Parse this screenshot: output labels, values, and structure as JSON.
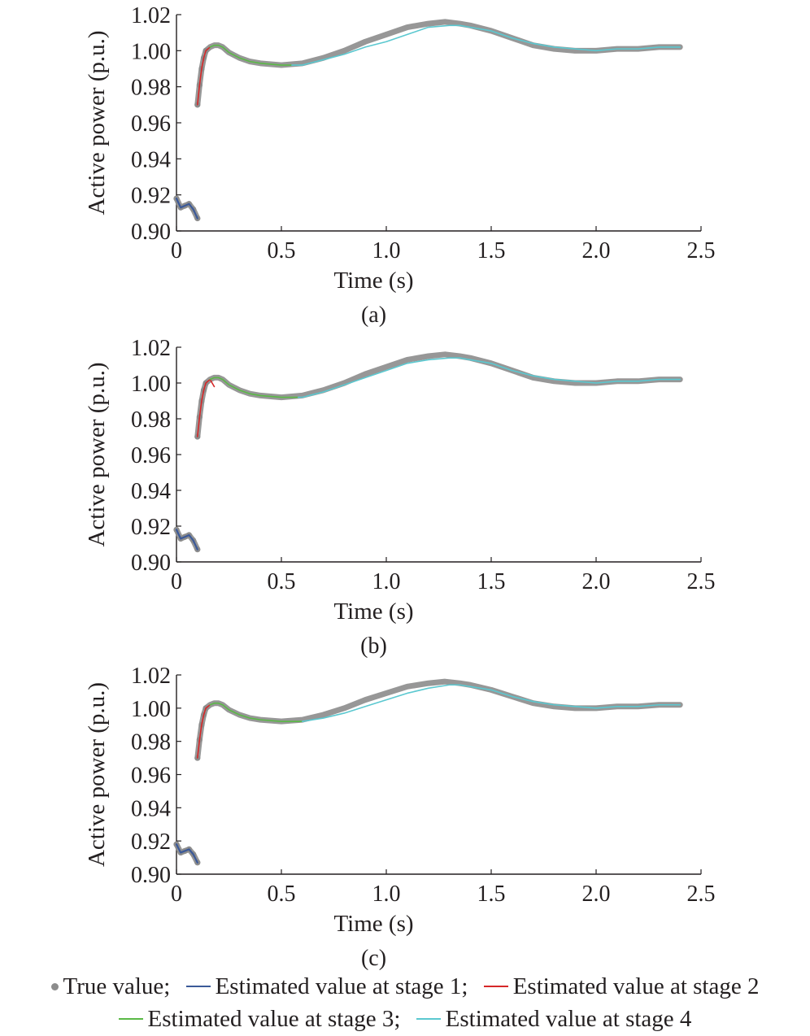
{
  "chart_data": [
    {
      "type": "line",
      "panel_label": "(a)",
      "xlabel": "Time (s)",
      "ylabel": "Active power (p.u.)",
      "xlim": [
        0,
        2.5
      ],
      "ylim": [
        0.9,
        1.02
      ],
      "xticks": [
        0,
        0.5,
        1.0,
        1.5,
        2.0,
        2.5
      ],
      "xtick_labels": [
        "0",
        "0.5",
        "1.0",
        "1.5",
        "2.0",
        "2.5"
      ],
      "yticks": [
        0.9,
        0.92,
        0.94,
        0.96,
        0.98,
        1.0,
        1.02
      ],
      "ytick_labels": [
        "0.90",
        "0.92",
        "0.94",
        "0.96",
        "0.98",
        "1.00",
        "1.02"
      ],
      "grid": false,
      "series": [
        {
          "name": "True value",
          "style": "dots",
          "color": "#8c8c8c",
          "x": [
            0,
            0.02,
            0.04,
            0.06,
            0.08,
            0.1,
            0.1,
            0.11,
            0.12,
            0.13,
            0.14,
            0.16,
            0.18,
            0.2,
            0.22,
            0.25,
            0.3,
            0.35,
            0.4,
            0.5,
            0.6,
            0.7,
            0.8,
            0.9,
            1.0,
            1.1,
            1.2,
            1.28,
            1.35,
            1.4,
            1.5,
            1.6,
            1.7,
            1.8,
            1.9,
            2.0,
            2.1,
            2.2,
            2.3,
            2.4
          ],
          "y": [
            0.918,
            0.913,
            0.914,
            0.915,
            0.912,
            0.907,
            0.97,
            0.981,
            0.99,
            0.996,
            1.0,
            1.002,
            1.003,
            1.003,
            1.002,
            0.999,
            0.996,
            0.994,
            0.993,
            0.992,
            0.993,
            0.996,
            1.0,
            1.005,
            1.009,
            1.013,
            1.015,
            1.016,
            1.015,
            1.014,
            1.011,
            1.007,
            1.003,
            1.001,
            1.0,
            1.0,
            1.001,
            1.001,
            1.002,
            1.002
          ]
        },
        {
          "name": "Estimated value at stage 1",
          "color": "#3b5998",
          "x": [
            0,
            0.02,
            0.04,
            0.06,
            0.08,
            0.1
          ],
          "y": [
            0.918,
            0.913,
            0.914,
            0.915,
            0.912,
            0.907
          ]
        },
        {
          "name": "Estimated value at stage 2",
          "color": "#d62728",
          "x": [
            0.1,
            0.11,
            0.12,
            0.13,
            0.14,
            0.16
          ],
          "y": [
            0.97,
            0.981,
            0.99,
            0.996,
            1.0,
            1.002
          ]
        },
        {
          "name": "Estimated value at stage 3",
          "color": "#5ab946",
          "x": [
            0.16,
            0.18,
            0.2,
            0.22,
            0.25,
            0.3,
            0.35,
            0.4,
            0.5,
            0.55
          ],
          "y": [
            1.002,
            1.003,
            1.003,
            1.002,
            0.999,
            0.996,
            0.994,
            0.993,
            0.992,
            0.992
          ]
        },
        {
          "name": "Estimated value at stage 4",
          "color": "#5bc8d0",
          "x": [
            0.55,
            0.6,
            0.7,
            0.8,
            0.9,
            1.0,
            1.1,
            1.2,
            1.3,
            1.35,
            1.4,
            1.5,
            1.6,
            1.7,
            1.8,
            1.9,
            2.0,
            2.1,
            2.2,
            2.3,
            2.4
          ],
          "y": [
            0.992,
            0.992,
            0.995,
            0.998,
            1.002,
            1.005,
            1.009,
            1.013,
            1.014,
            1.014,
            1.013,
            1.011,
            1.007,
            1.004,
            1.002,
            1.001,
            1.0,
            1.001,
            1.001,
            1.002,
            1.002
          ]
        }
      ]
    },
    {
      "type": "line",
      "panel_label": "(b)",
      "xlabel": "Time (s)",
      "ylabel": "Active power (p.u.)",
      "xlim": [
        0,
        2.5
      ],
      "ylim": [
        0.9,
        1.02
      ],
      "xticks": [
        0,
        0.5,
        1.0,
        1.5,
        2.0,
        2.5
      ],
      "xtick_labels": [
        "0",
        "0.5",
        "1.0",
        "1.5",
        "2.0",
        "2.5"
      ],
      "yticks": [
        0.9,
        0.92,
        0.94,
        0.96,
        0.98,
        1.0,
        1.02
      ],
      "ytick_labels": [
        "0.90",
        "0.92",
        "0.94",
        "0.96",
        "0.98",
        "1.00",
        "1.02"
      ],
      "grid": false,
      "series": [
        {
          "name": "True value",
          "style": "dots",
          "color": "#8c8c8c",
          "x": [
            0,
            0.02,
            0.04,
            0.06,
            0.08,
            0.1,
            0.1,
            0.11,
            0.12,
            0.13,
            0.14,
            0.16,
            0.18,
            0.2,
            0.22,
            0.25,
            0.3,
            0.35,
            0.4,
            0.5,
            0.6,
            0.7,
            0.8,
            0.9,
            1.0,
            1.1,
            1.2,
            1.28,
            1.35,
            1.4,
            1.5,
            1.6,
            1.7,
            1.8,
            1.9,
            2.0,
            2.1,
            2.2,
            2.3,
            2.4
          ],
          "y": [
            0.918,
            0.913,
            0.914,
            0.915,
            0.912,
            0.907,
            0.97,
            0.981,
            0.99,
            0.996,
            1.0,
            1.002,
            1.003,
            1.003,
            1.002,
            0.999,
            0.996,
            0.994,
            0.993,
            0.992,
            0.993,
            0.996,
            1.0,
            1.005,
            1.009,
            1.013,
            1.015,
            1.016,
            1.015,
            1.014,
            1.011,
            1.007,
            1.003,
            1.001,
            1.0,
            1.0,
            1.001,
            1.001,
            1.002,
            1.002
          ]
        },
        {
          "name": "Estimated value at stage 1",
          "color": "#3b5998",
          "x": [
            0,
            0.02,
            0.04,
            0.06,
            0.08,
            0.1
          ],
          "y": [
            0.918,
            0.913,
            0.914,
            0.915,
            0.912,
            0.907
          ]
        },
        {
          "name": "Estimated value at stage 2",
          "color": "#d62728",
          "x": [
            0.1,
            0.11,
            0.12,
            0.13,
            0.14,
            0.16,
            0.18
          ],
          "y": [
            0.97,
            0.981,
            0.99,
            0.996,
            1.0,
            1.002,
            0.998
          ]
        },
        {
          "name": "Estimated value at stage 3",
          "color": "#5ab946",
          "x": [
            0.16,
            0.18,
            0.2,
            0.22,
            0.25,
            0.3,
            0.35,
            0.4,
            0.5,
            0.58
          ],
          "y": [
            1.002,
            1.003,
            1.003,
            1.002,
            0.999,
            0.996,
            0.994,
            0.993,
            0.992,
            0.992
          ]
        },
        {
          "name": "Estimated value at stage 4",
          "color": "#5bc8d0",
          "x": [
            0.58,
            0.6,
            0.7,
            0.8,
            0.9,
            1.0,
            1.1,
            1.2,
            1.3,
            1.35,
            1.4,
            1.5,
            1.6,
            1.7,
            1.8,
            1.9,
            2.0,
            2.1,
            2.2,
            2.3,
            2.4
          ],
          "y": [
            0.992,
            0.992,
            0.995,
            0.999,
            1.003,
            1.007,
            1.011,
            1.013,
            1.014,
            1.014,
            1.013,
            1.011,
            1.007,
            1.004,
            1.002,
            1.001,
            1.0,
            1.001,
            1.001,
            1.002,
            1.002
          ]
        }
      ]
    },
    {
      "type": "line",
      "panel_label": "(c)",
      "xlabel": "Time (s)",
      "ylabel": "Active power (p.u.)",
      "xlim": [
        0,
        2.5
      ],
      "ylim": [
        0.9,
        1.02
      ],
      "xticks": [
        0,
        0.5,
        1.0,
        1.5,
        2.0,
        2.5
      ],
      "xtick_labels": [
        "0",
        "0.5",
        "1.0",
        "1.5",
        "2.0",
        "2.5"
      ],
      "yticks": [
        0.9,
        0.92,
        0.94,
        0.96,
        0.98,
        1.0,
        1.02
      ],
      "ytick_labels": [
        "0.90",
        "0.92",
        "0.94",
        "0.96",
        "0.98",
        "1.00",
        "1.02"
      ],
      "grid": false,
      "series": [
        {
          "name": "True value",
          "style": "dots",
          "color": "#8c8c8c",
          "x": [
            0,
            0.02,
            0.04,
            0.06,
            0.08,
            0.1,
            0.1,
            0.11,
            0.12,
            0.13,
            0.14,
            0.16,
            0.18,
            0.2,
            0.22,
            0.25,
            0.3,
            0.35,
            0.4,
            0.5,
            0.6,
            0.7,
            0.8,
            0.9,
            1.0,
            1.1,
            1.2,
            1.28,
            1.35,
            1.4,
            1.5,
            1.6,
            1.7,
            1.8,
            1.9,
            2.0,
            2.1,
            2.2,
            2.3,
            2.4
          ],
          "y": [
            0.918,
            0.913,
            0.914,
            0.915,
            0.912,
            0.907,
            0.97,
            0.981,
            0.99,
            0.996,
            1.0,
            1.002,
            1.003,
            1.003,
            1.002,
            0.999,
            0.996,
            0.994,
            0.993,
            0.992,
            0.993,
            0.996,
            1.0,
            1.005,
            1.009,
            1.013,
            1.015,
            1.016,
            1.015,
            1.014,
            1.011,
            1.007,
            1.003,
            1.001,
            1.0,
            1.0,
            1.001,
            1.001,
            1.002,
            1.002
          ]
        },
        {
          "name": "Estimated value at stage 1",
          "color": "#3b5998",
          "x": [
            0,
            0.02,
            0.04,
            0.06,
            0.08,
            0.1
          ],
          "y": [
            0.918,
            0.913,
            0.914,
            0.915,
            0.912,
            0.907
          ]
        },
        {
          "name": "Estimated value at stage 2",
          "color": "#d62728",
          "x": [
            0.1,
            0.11,
            0.12,
            0.13,
            0.14,
            0.16
          ],
          "y": [
            0.97,
            0.981,
            0.99,
            0.996,
            1.0,
            1.002
          ]
        },
        {
          "name": "Estimated value at stage 3",
          "color": "#5ab946",
          "x": [
            0.16,
            0.18,
            0.2,
            0.22,
            0.25,
            0.3,
            0.35,
            0.4,
            0.5,
            0.6
          ],
          "y": [
            1.002,
            1.003,
            1.003,
            1.002,
            0.999,
            0.996,
            0.994,
            0.993,
            0.992,
            0.992
          ]
        },
        {
          "name": "Estimated value at stage 4",
          "color": "#5bc8d0",
          "x": [
            0.6,
            0.7,
            0.8,
            0.9,
            1.0,
            1.1,
            1.2,
            1.3,
            1.35,
            1.4,
            1.5,
            1.6,
            1.7,
            1.8,
            1.9,
            2.0,
            2.1,
            2.2,
            2.3,
            2.4
          ],
          "y": [
            0.992,
            0.994,
            0.997,
            1.001,
            1.005,
            1.009,
            1.012,
            1.014,
            1.014,
            1.013,
            1.011,
            1.007,
            1.004,
            1.002,
            1.001,
            1.0,
            1.001,
            1.001,
            1.002,
            1.002
          ]
        }
      ]
    }
  ],
  "legend": {
    "row1": [
      {
        "label": "True value;",
        "kind": "dot",
        "color": "#8c8c8c"
      },
      {
        "label": "Estimated value at stage 1;",
        "kind": "line",
        "color": "#3b5998"
      },
      {
        "label": "Estimated value at stage 2",
        "kind": "line",
        "color": "#d62728"
      }
    ],
    "row2": [
      {
        "label": "Estimated value at stage 3;",
        "kind": "line",
        "color": "#5ab946"
      },
      {
        "label": "Estimated value at stage 4",
        "kind": "line",
        "color": "#5bc8d0"
      }
    ]
  }
}
